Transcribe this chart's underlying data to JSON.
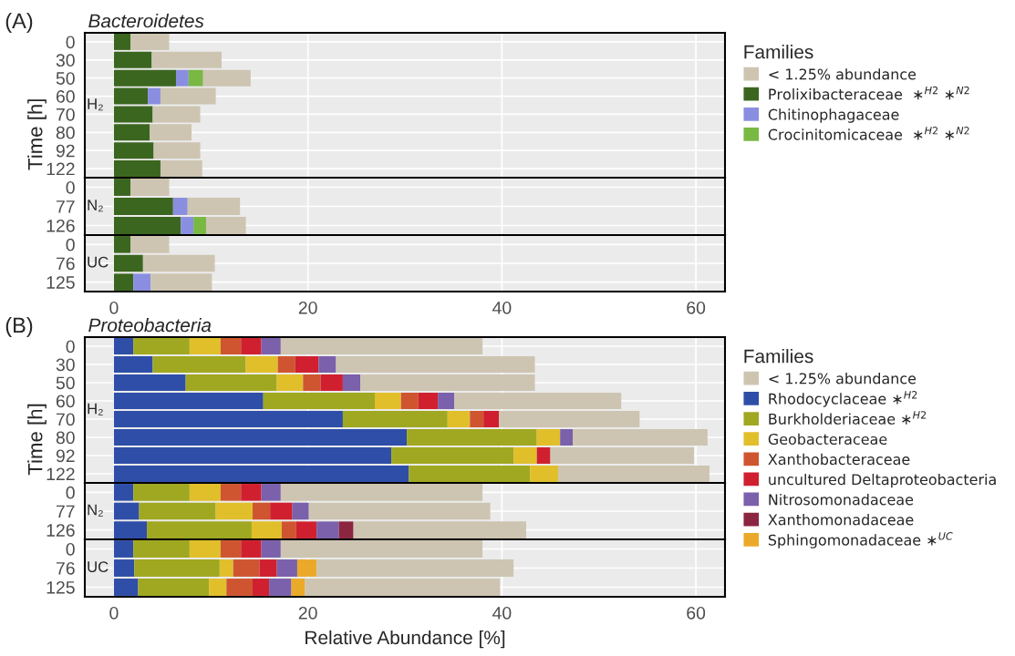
{
  "chart_data": [
    {
      "type": "bar",
      "orientation": "horizontal",
      "stacked": true,
      "title": "(A)",
      "subtitle": "Bacteroidetes",
      "ylabel": "Time [h]",
      "legend_title": "Families",
      "legend": "right",
      "grid": true,
      "tick_labels": "y",
      "annotations": [
        "H₂"
      ],
      "categories": [
        "0",
        "30",
        "50",
        "60",
        "70",
        "80",
        "92",
        "122"
      ],
      "xlim": [
        -3,
        63
      ],
      "xticks": [
        0,
        20,
        40,
        60
      ],
      "series": [
        {
          "name": "Prolixibacteraceae  ∗$^{H2}$ ∗$^{N2}$",
          "color": "#3b661f",
          "values": [
            1.7,
            3.9,
            6.4,
            3.5,
            4.0,
            3.7,
            4.1,
            4.8
          ]
        },
        {
          "name": "Chitinophagaceae",
          "color": "#8a8ee0",
          "values": [
            null,
            null,
            1.3,
            1.3,
            null,
            null,
            null,
            null
          ]
        },
        {
          "name": "Crocinitomicaceae  ∗$^{H2}$ ∗$^{N2}$",
          "color": "#78b843",
          "values": [
            null,
            null,
            1.5,
            null,
            null,
            null,
            null,
            null
          ]
        },
        {
          "name": "< 1.25% abundance",
          "color": "#cdc5b2",
          "values": [
            4.0,
            7.2,
            4.9,
            5.7,
            4.9,
            4.3,
            4.8,
            4.3
          ]
        }
      ]
    },
    {
      "type": "bar",
      "orientation": "horizontal",
      "stacked": true,
      "grid": true,
      "tick_labels": "y",
      "annotations": [
        "N₂"
      ],
      "categories": [
        "0",
        "77",
        "126"
      ],
      "xlim": [
        -3,
        63
      ],
      "xticks": [
        0,
        20,
        40,
        60
      ],
      "series": [
        {
          "color": "#3b661f",
          "values": [
            1.7,
            6.1,
            6.9
          ]
        },
        {
          "color": "#8a8ee0",
          "values": [
            null,
            1.5,
            1.3
          ]
        },
        {
          "color": "#78b843",
          "values": [
            null,
            null,
            1.3
          ]
        },
        {
          "color": "#cdc5b2",
          "values": [
            4.0,
            5.4,
            4.1
          ]
        }
      ]
    },
    {
      "type": "bar",
      "orientation": "horizontal",
      "stacked": true,
      "grid": true,
      "annotations": [
        "UC"
      ],
      "categories": [
        "0",
        "76",
        "125"
      ],
      "xlim": [
        -3,
        63
      ],
      "xticks": [
        0,
        20,
        40,
        60
      ],
      "series": [
        {
          "color": "#3b661f",
          "values": [
            1.7,
            3.0,
            2.0
          ]
        },
        {
          "color": "#8a8ee0",
          "values": [
            null,
            null,
            1.8
          ]
        },
        {
          "color": "#cdc5b2",
          "values": [
            4.0,
            7.4,
            6.3
          ]
        }
      ]
    },
    {
      "type": "bar",
      "orientation": "horizontal",
      "stacked": true,
      "title": "(B)",
      "subtitle": "Proteobacteria",
      "ylabel": "Time [h]",
      "legend_title": "Families",
      "legend": "right",
      "grid": true,
      "tick_labels": "y",
      "annotations": [
        "H₂"
      ],
      "categories": [
        "0",
        "30",
        "50",
        "60",
        "70",
        "80",
        "92",
        "122"
      ],
      "xlim": [
        -3,
        63
      ],
      "xticks": [
        0,
        20,
        40,
        60
      ],
      "series": [
        {
          "name": "Rhodocyclaceae ∗$^{H2}$",
          "color": "#2f4ea8",
          "values": [
            2.0,
            4.0,
            7.4,
            15.4,
            23.6,
            30.2,
            28.6,
            30.4
          ]
        },
        {
          "name": "Burkholderiaceae ∗$^{H2}$",
          "color": "#a0a821",
          "values": [
            5.8,
            9.6,
            9.4,
            11.5,
            10.8,
            13.4,
            12.6,
            12.5
          ]
        },
        {
          "name": "Geobacteraceae",
          "color": "#e1bf2b",
          "values": [
            3.2,
            3.3,
            2.7,
            2.7,
            2.3,
            2.4,
            2.4,
            2.9
          ]
        },
        {
          "name": "Xanthobacteraceae",
          "color": "#cf5530",
          "values": [
            2.1,
            1.8,
            1.8,
            1.8,
            1.4,
            null,
            null,
            null
          ]
        },
        {
          "name": "uncultured Deltaproteobacteria",
          "color": "#d0202f",
          "values": [
            2.1,
            2.4,
            2.3,
            2.0,
            1.6,
            null,
            1.4,
            null
          ]
        },
        {
          "name": "Nitrosomonadaceae",
          "color": "#7b60ab",
          "values": [
            2.0,
            1.8,
            1.8,
            1.7,
            null,
            1.3,
            null,
            null
          ]
        },
        {
          "name": "< 1.25% abundance",
          "color": "#cdc5b2",
          "values": [
            20.8,
            20.5,
            18.0,
            17.2,
            14.5,
            13.9,
            14.8,
            15.6
          ]
        }
      ]
    },
    {
      "type": "bar",
      "orientation": "horizontal",
      "stacked": true,
      "grid": true,
      "tick_labels": "y",
      "annotations": [
        "N₂"
      ],
      "categories": [
        "0",
        "77",
        "126"
      ],
      "xlim": [
        -3,
        63
      ],
      "xticks": [
        0,
        20,
        40,
        60
      ],
      "series": [
        {
          "color": "#2f4ea8",
          "values": [
            2.0,
            2.6,
            3.4
          ]
        },
        {
          "color": "#a0a821",
          "values": [
            5.8,
            7.9,
            10.8
          ]
        },
        {
          "color": "#e1bf2b",
          "values": [
            3.2,
            3.8,
            3.1
          ]
        },
        {
          "color": "#cf5530",
          "values": [
            2.1,
            1.8,
            1.5
          ]
        },
        {
          "color": "#d0202f",
          "values": [
            2.1,
            2.3,
            2.1
          ]
        },
        {
          "color": "#7b60ab",
          "values": [
            2.0,
            1.7,
            2.3
          ]
        },
        {
          "name": "Xanthomonadaceae",
          "color": "#8b2540",
          "values": [
            null,
            null,
            1.5
          ]
        },
        {
          "color": "#cdc5b2",
          "values": [
            20.8,
            18.7,
            17.8
          ]
        }
      ]
    },
    {
      "type": "bar",
      "orientation": "horizontal",
      "stacked": true,
      "grid": true,
      "xlabel": "Relative Abundance [%]",
      "annotations": [
        "UC"
      ],
      "categories": [
        "0",
        "76",
        "125"
      ],
      "xlim": [
        -3,
        63
      ],
      "xticks": [
        0,
        20,
        40,
        60
      ],
      "series": [
        {
          "color": "#2f4ea8",
          "values": [
            2.0,
            2.1,
            2.5
          ]
        },
        {
          "color": "#a0a821",
          "values": [
            5.8,
            8.8,
            7.3
          ]
        },
        {
          "color": "#e1bf2b",
          "values": [
            3.2,
            1.4,
            1.8
          ]
        },
        {
          "color": "#cf5530",
          "values": [
            2.1,
            2.7,
            2.7
          ]
        },
        {
          "color": "#d0202f",
          "values": [
            2.1,
            1.8,
            1.7
          ]
        },
        {
          "color": "#7b60ab",
          "values": [
            2.0,
            2.1,
            2.3
          ]
        },
        {
          "name": "Sphingomonadaceae ∗$^{UC}$",
          "color": "#eba92a",
          "values": [
            null,
            2.0,
            1.4
          ]
        },
        {
          "color": "#cdc5b2",
          "values": [
            20.8,
            20.3,
            20.1
          ]
        }
      ]
    }
  ]
}
